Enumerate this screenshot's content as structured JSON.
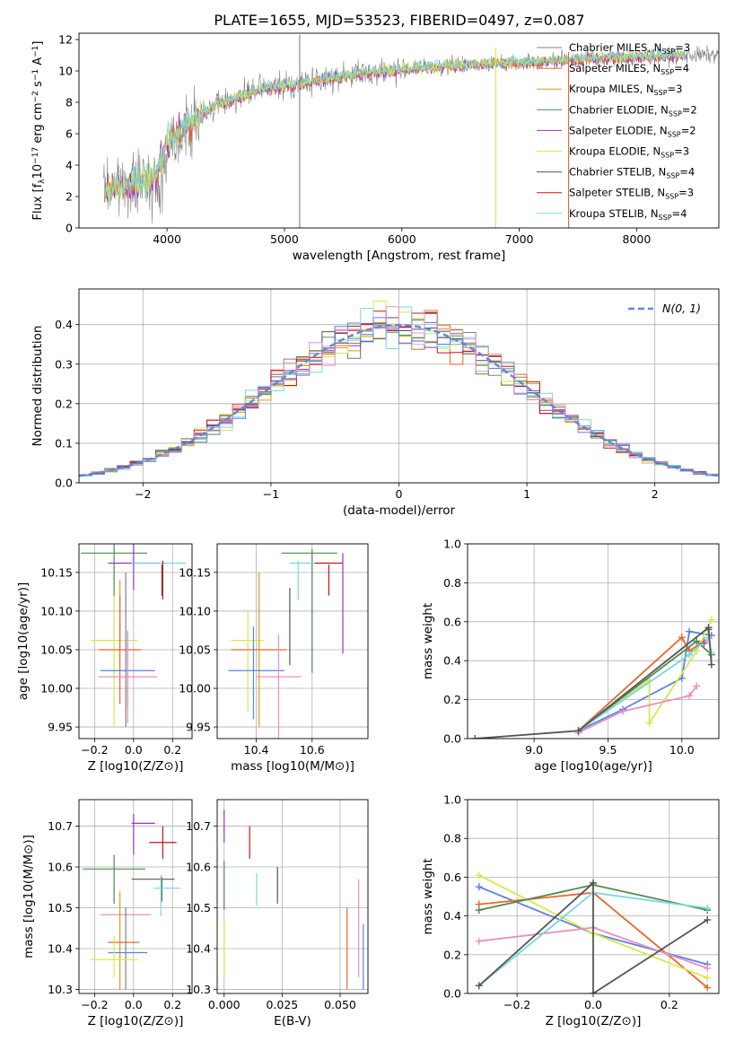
{
  "figure": {
    "suptitle": "PLATE=1655, MJD=53523, FIBERID=0497, z=0.087"
  },
  "colors": {
    "chabrier_miles": "#808080",
    "salpeter_miles": "#e8672b",
    "kroupa_miles": "#e09a1c",
    "chabrier_elodie": "#4c8c4c",
    "salpeter_elodie": "#a030c8",
    "kroupa_elodie": "#d8e84c",
    "chabrier_stelib": "#555555",
    "salpeter_stelib": "#c81414",
    "kroupa_stelib": "#78d8e0",
    "blue": "#5a82e0",
    "pink": "#e890c0",
    "gauss": "#5a8ad8"
  },
  "chart_data": [
    {
      "id": "spectrum",
      "type": "line",
      "xlabel": "wavelength [Angstrom, rest frame]",
      "ylabel": "Flux [f_λ10^-17 erg cm^-2 s^-1 A^-1]",
      "xlim": [
        3250,
        8700
      ],
      "ylim": [
        0,
        12.4
      ],
      "xticks": [
        4000,
        5000,
        6000,
        7000,
        8000
      ],
      "yticks": [
        0,
        2,
        4,
        6,
        8,
        10,
        12
      ],
      "legend": "top-right",
      "legend_entries": [
        {
          "name": "Chabrier MILES, N",
          "sub": "SSP",
          "suffix": "=3"
        },
        {
          "name": "Salpeter MILES, N",
          "sub": "SSP",
          "suffix": "=4"
        },
        {
          "name": "Kroupa MILES, N",
          "sub": "SSP",
          "suffix": "=3"
        },
        {
          "name": "Chabrier ELODIE, N",
          "sub": "SSP",
          "suffix": "=2"
        },
        {
          "name": "Salpeter ELODIE, N",
          "sub": "SSP",
          "suffix": "=2"
        },
        {
          "name": "Kroupa ELODIE, N",
          "sub": "SSP",
          "suffix": "=3"
        },
        {
          "name": "Chabrier STELIB, N",
          "sub": "SSP",
          "suffix": "=4"
        },
        {
          "name": "Salpeter STELIB, N",
          "sub": "SSP",
          "suffix": "=3"
        },
        {
          "name": "Kroupa STELIB, N",
          "sub": "SSP",
          "suffix": "=4"
        }
      ],
      "continuum_anchors": {
        "x": [
          3500,
          3700,
          3900,
          4000,
          4200,
          4400,
          4800,
          5200,
          5600,
          6000,
          6400,
          6800,
          7200,
          7600,
          8000,
          8400
        ],
        "y": [
          2.5,
          2.8,
          3.2,
          5.5,
          6.6,
          7.8,
          8.8,
          9.3,
          9.8,
          10.1,
          10.3,
          10.5,
          10.6,
          10.8,
          10.9,
          11.0
        ]
      },
      "spikes": [
        {
          "x": 5130,
          "y_min": 0,
          "y_max": 12.3,
          "color": "#808080"
        },
        {
          "x": 6800,
          "y_min": 0,
          "y_max": 11.5,
          "color": "#d8e84c"
        },
        {
          "x": 7420,
          "y_min": 0,
          "y_max": 11.2,
          "color": "#e8672b"
        }
      ]
    },
    {
      "id": "residuals",
      "type": "line",
      "xlabel": "(data-model)/error",
      "ylabel": "Normed distribution",
      "xlim": [
        -2.5,
        2.5
      ],
      "ylim": [
        0,
        0.49
      ],
      "xticks": [
        -2,
        -1,
        0,
        1,
        2
      ],
      "yticks": [
        0.0,
        0.1,
        0.2,
        0.3,
        0.4
      ],
      "grid": true,
      "legend": "top-right",
      "legend_label": "N(0, 1)",
      "bin_width": 0.1
    },
    {
      "id": "age_Z",
      "type": "scatter",
      "xlabel": "Z [log10(Z/Z⊙)]",
      "ylabel": "age [log10(age/yr)]",
      "xlim": [
        -0.28,
        0.3
      ],
      "ylim": [
        9.935,
        10.187
      ],
      "xticks": [
        -0.2,
        0.0,
        0.2
      ],
      "ytick_values": [
        9.95,
        10.0,
        10.05,
        10.1,
        10.15
      ],
      "ytick_labels": [
        "9.95",
        "10.00",
        "10.05",
        "10.10",
        "10.15"
      ],
      "grid": true,
      "points": [
        {
          "x": -0.1,
          "xerr": 0.17,
          "y": 10.175,
          "yerr": 0.06,
          "color": "#4c8c4c"
        },
        {
          "x": 0.0,
          "xerr": 0.13,
          "y": 10.162,
          "yerr": 0.035,
          "color": "#a030c8"
        },
        {
          "x": 0.13,
          "xerr": 0.14,
          "y": 10.162,
          "yerr": 0.0,
          "color": "#78d8e0"
        },
        {
          "x": 0.15,
          "xerr": 0.0,
          "y": 10.14,
          "yerr": 0.025,
          "color": "#c81414"
        },
        {
          "x": 0.145,
          "xerr": 0.0,
          "y": 10.14,
          "yerr": 0.02,
          "color": "#555555"
        },
        {
          "x": -0.07,
          "xerr": 0.0,
          "y": 10.1,
          "yerr": 0.04,
          "color": "#e09a1c"
        },
        {
          "x": -0.1,
          "xerr": 0.12,
          "y": 10.062,
          "yerr": 0.0,
          "color": "#d8e84c"
        },
        {
          "x": -0.1,
          "xerr": 0.0,
          "y": 10.035,
          "yerr": 0.085,
          "color": "#d8e84c"
        },
        {
          "x": -0.07,
          "xerr": 0.11,
          "y": 10.05,
          "yerr": 0.07,
          "color": "#e8672b"
        },
        {
          "x": -0.04,
          "xerr": 0.0,
          "y": 10.05,
          "yerr": 0.1,
          "color": "#808080"
        },
        {
          "x": -0.03,
          "xerr": 0.14,
          "y": 10.023,
          "yerr": 0.05,
          "color": "#5a82e0"
        },
        {
          "x": -0.03,
          "xerr": 0.15,
          "y": 10.015,
          "yerr": 0.06,
          "color": "#e890c0"
        }
      ]
    },
    {
      "id": "age_mass",
      "type": "scatter",
      "xlabel": "mass [log10(M/M⊙)]",
      "ylabel": "",
      "xlim": [
        10.26,
        10.8
      ],
      "ylim": [
        9.935,
        10.187
      ],
      "xticks": [
        10.4,
        10.6
      ],
      "ytick_values": [
        9.95,
        10.0,
        10.05,
        10.1,
        10.15
      ],
      "ytick_labels": [
        "9.95",
        "10.00",
        "10.05",
        "10.10",
        "10.15"
      ],
      "grid": true,
      "points": [
        {
          "x": 10.59,
          "xerr": 0.1,
          "y": 10.175,
          "yerr": 0.0,
          "color": "#4c8c4c"
        },
        {
          "x": 10.6,
          "xerr": 0.0,
          "y": 10.1,
          "yerr": 0.08,
          "color": "#4c8c4c"
        },
        {
          "x": 10.57,
          "xerr": 0.05,
          "y": 10.162,
          "yerr": 0.0,
          "color": "#78d8e0"
        },
        {
          "x": 10.55,
          "xerr": 0.0,
          "y": 10.14,
          "yerr": 0.025,
          "color": "#78d8e0"
        },
        {
          "x": 10.66,
          "xerr": 0.05,
          "y": 10.162,
          "yerr": 0.0,
          "color": "#c81414"
        },
        {
          "x": 10.66,
          "xerr": 0.0,
          "y": 10.14,
          "yerr": 0.02,
          "color": "#c81414"
        },
        {
          "x": 10.71,
          "xerr": 0.0,
          "y": 10.11,
          "yerr": 0.065,
          "color": "#a030c8"
        },
        {
          "x": 10.52,
          "xerr": 0.0,
          "y": 10.08,
          "yerr": 0.05,
          "color": "#555555"
        },
        {
          "x": 10.37,
          "xerr": 0.06,
          "y": 10.062,
          "yerr": 0.0,
          "color": "#d8e84c"
        },
        {
          "x": 10.37,
          "xerr": 0.0,
          "y": 10.035,
          "yerr": 0.065,
          "color": "#d8e84c"
        },
        {
          "x": 10.41,
          "xerr": 0.1,
          "y": 10.05,
          "yerr": 0.0,
          "color": "#e8672b"
        },
        {
          "x": 10.41,
          "xerr": 0.0,
          "y": 10.05,
          "yerr": 0.1,
          "color": "#e09a1c"
        },
        {
          "x": 10.4,
          "xerr": 0.1,
          "y": 10.023,
          "yerr": 0.0,
          "color": "#5a82e0"
        },
        {
          "x": 10.39,
          "xerr": 0.0,
          "y": 10.02,
          "yerr": 0.06,
          "color": "#5a82e0"
        },
        {
          "x": 10.48,
          "xerr": 0.08,
          "y": 10.015,
          "yerr": 0.0,
          "color": "#e890c0"
        },
        {
          "x": 10.48,
          "xerr": 0.0,
          "y": 10.0,
          "yerr": 0.07,
          "color": "#e890c0"
        }
      ]
    },
    {
      "id": "weight_age",
      "type": "line",
      "xlabel": "age [log10(age/yr)]",
      "ylabel": "mass weight",
      "xlim": [
        8.55,
        10.25
      ],
      "ylim": [
        0,
        1
      ],
      "xticks": [
        9.0,
        9.5,
        10.0
      ],
      "yticks": [
        0.0,
        0.2,
        0.4,
        0.6,
        0.8,
        1.0
      ],
      "grid": true,
      "series": [
        {
          "color": "#5a82e0",
          "x": [
            9.3,
            9.6,
            10.0,
            10.05,
            10.2
          ],
          "y": [
            0.04,
            0.15,
            0.31,
            0.55,
            0.53
          ]
        },
        {
          "color": "#e8672b",
          "x": [
            9.3,
            10.0,
            10.05,
            10.15
          ],
          "y": [
            0.04,
            0.52,
            0.45,
            0.5
          ]
        },
        {
          "color": "#d8e84c",
          "x": [
            9.3,
            9.78,
            9.78,
            10.1,
            10.2
          ],
          "y": [
            0.04,
            0.3,
            0.08,
            0.45,
            0.61
          ]
        },
        {
          "color": "#4c8c4c",
          "x": [
            9.3,
            10.1,
            10.2
          ],
          "y": [
            0.04,
            0.5,
            0.43
          ]
        },
        {
          "color": "#e890c0",
          "x": [
            9.3,
            9.6,
            10.05,
            10.1
          ],
          "y": [
            0.03,
            0.14,
            0.22,
            0.27
          ]
        },
        {
          "color": "#78d8e0",
          "x": [
            9.3,
            10.05,
            10.18,
            10.2
          ],
          "y": [
            0.04,
            0.43,
            0.52,
            0.44
          ]
        },
        {
          "color": "#a030c8",
          "x": [
            10.15
          ],
          "y": [
            0.49
          ]
        },
        {
          "color": "#555555",
          "x": [
            8.6,
            9.3,
            10.18,
            10.2,
            10.18
          ],
          "y": [
            0.0,
            0.04,
            0.57,
            0.38,
            0.56
          ]
        }
      ]
    },
    {
      "id": "mass_Z",
      "type": "scatter",
      "xlabel": "Z [log10(Z/Z⊙)]",
      "ylabel": "mass [log10(M/M⊙)]",
      "xlim": [
        -0.28,
        0.3
      ],
      "ylim": [
        10.29,
        10.765
      ],
      "xticks": [
        -0.2,
        0.0,
        0.2
      ],
      "ytick_values": [
        10.3,
        10.4,
        10.5,
        10.6,
        10.7
      ],
      "ytick_labels": [
        "10.3",
        "10.4",
        "10.5",
        "10.6",
        "10.7"
      ],
      "grid": true,
      "points": [
        {
          "x": 0.05,
          "xerr": 0.06,
          "y": 10.707,
          "yerr": 0.0,
          "color": "#a030c8"
        },
        {
          "x": 0.0,
          "xerr": 0.0,
          "y": 10.68,
          "yerr": 0.05,
          "color": "#a030c8"
        },
        {
          "x": 0.15,
          "xerr": 0.07,
          "y": 10.66,
          "yerr": 0.0,
          "color": "#c81414"
        },
        {
          "x": 0.15,
          "xerr": 0.0,
          "y": 10.66,
          "yerr": 0.04,
          "color": "#c81414"
        },
        {
          "x": -0.1,
          "xerr": 0.16,
          "y": 10.595,
          "yerr": 0.0,
          "color": "#4c8c4c"
        },
        {
          "x": -0.1,
          "xerr": 0.0,
          "y": 10.57,
          "yerr": 0.06,
          "color": "#4c8c4c"
        },
        {
          "x": 0.1,
          "xerr": 0.11,
          "y": 10.57,
          "yerr": 0.0,
          "color": "#555555"
        },
        {
          "x": 0.145,
          "xerr": 0.0,
          "y": 10.545,
          "yerr": 0.03,
          "color": "#555555"
        },
        {
          "x": 0.17,
          "xerr": 0.07,
          "y": 10.548,
          "yerr": 0.0,
          "color": "#78d8e0"
        },
        {
          "x": 0.14,
          "xerr": 0.0,
          "y": 10.53,
          "yerr": 0.05,
          "color": "#78d8e0"
        },
        {
          "x": -0.04,
          "xerr": 0.13,
          "y": 10.483,
          "yerr": 0.0,
          "color": "#e890c0"
        },
        {
          "x": -0.04,
          "xerr": 0.0,
          "y": 10.4,
          "yerr": 0.1,
          "color": "#808080"
        },
        {
          "x": -0.07,
          "xerr": 0.0,
          "y": 10.42,
          "yerr": 0.12,
          "color": "#e09a1c"
        },
        {
          "x": -0.05,
          "xerr": 0.08,
          "y": 10.415,
          "yerr": 0.0,
          "color": "#e8672b"
        },
        {
          "x": -0.03,
          "xerr": 0.1,
          "y": 10.39,
          "yerr": 0.0,
          "color": "#5a82e0"
        },
        {
          "x": -0.1,
          "xerr": 0.0,
          "y": 10.38,
          "yerr": 0.05,
          "color": "#d8e84c"
        },
        {
          "x": -0.1,
          "xerr": 0.12,
          "y": 10.373,
          "yerr": 0.0,
          "color": "#d8e84c"
        }
      ]
    },
    {
      "id": "mass_ebv",
      "type": "scatter",
      "xlabel": "E(B-V)",
      "ylabel": "",
      "xlim": [
        -0.003,
        0.062
      ],
      "ylim": [
        10.29,
        10.765
      ],
      "xticks": [
        0.0,
        0.025,
        0.05
      ],
      "xtick_labels": [
        "0.000",
        "0.025",
        "0.050"
      ],
      "ytick_values": [
        10.3,
        10.4,
        10.5,
        10.6,
        10.7
      ],
      "ytick_labels": [
        "10.3",
        "10.4",
        "10.5",
        "10.6",
        "10.7"
      ],
      "grid": true,
      "points": [
        {
          "x": 0.0,
          "y": 10.7,
          "yerr": 0.04,
          "color": "#a030c8"
        },
        {
          "x": 0.011,
          "y": 10.66,
          "yerr": 0.04,
          "color": "#c81414"
        },
        {
          "x": 0.0,
          "y": 10.555,
          "yerr": 0.06,
          "color": "#4c8c4c"
        },
        {
          "x": 0.0,
          "y": 10.4,
          "yerr": 0.07,
          "color": "#d8e84c"
        },
        {
          "x": 0.014,
          "y": 10.545,
          "yerr": 0.04,
          "color": "#78d8e0"
        },
        {
          "x": 0.023,
          "y": 10.555,
          "yerr": 0.045,
          "color": "#555555"
        },
        {
          "x": 0.058,
          "y": 10.45,
          "yerr": 0.12,
          "color": "#e890c0"
        },
        {
          "x": 0.053,
          "y": 10.4,
          "yerr": 0.1,
          "color": "#e8672b"
        },
        {
          "x": 0.06,
          "y": 10.38,
          "yerr": 0.08,
          "color": "#5a82e0"
        }
      ]
    },
    {
      "id": "weight_Z",
      "type": "line",
      "xlabel": "Z [log10(Z/Z⊙)]",
      "ylabel": "mass weight",
      "xlim": [
        -0.33,
        0.33
      ],
      "ylim": [
        0,
        1
      ],
      "xticks": [
        -0.2,
        0.0,
        0.2
      ],
      "yticks": [
        0.0,
        0.2,
        0.4,
        0.6,
        0.8,
        1.0
      ],
      "grid": true,
      "series": [
        {
          "color": "#5a82e0",
          "x": [
            -0.3,
            0.0,
            0.3
          ],
          "y": [
            0.55,
            0.31,
            0.15
          ]
        },
        {
          "color": "#e8672b",
          "x": [
            -0.3,
            0.0,
            0.3
          ],
          "y": [
            0.46,
            0.52,
            0.03
          ]
        },
        {
          "color": "#d8e84c",
          "x": [
            -0.3,
            0.0,
            0.3
          ],
          "y": [
            0.61,
            0.31,
            0.08
          ]
        },
        {
          "color": "#4c8c4c",
          "x": [
            -0.3,
            0.0,
            0.3
          ],
          "y": [
            0.43,
            0.56,
            0.43
          ]
        },
        {
          "color": "#e890c0",
          "x": [
            -0.3,
            0.0,
            0.3
          ],
          "y": [
            0.27,
            0.34,
            0.13
          ]
        },
        {
          "color": "#78d8e0",
          "x": [
            -0.3,
            0.0,
            0.3
          ],
          "y": [
            0.04,
            0.52,
            0.44
          ]
        },
        {
          "color": "#555555",
          "x": [
            -0.3,
            0.0,
            0.0,
            0.3
          ],
          "y": [
            0.04,
            0.57,
            0.0,
            0.38
          ]
        }
      ]
    }
  ]
}
